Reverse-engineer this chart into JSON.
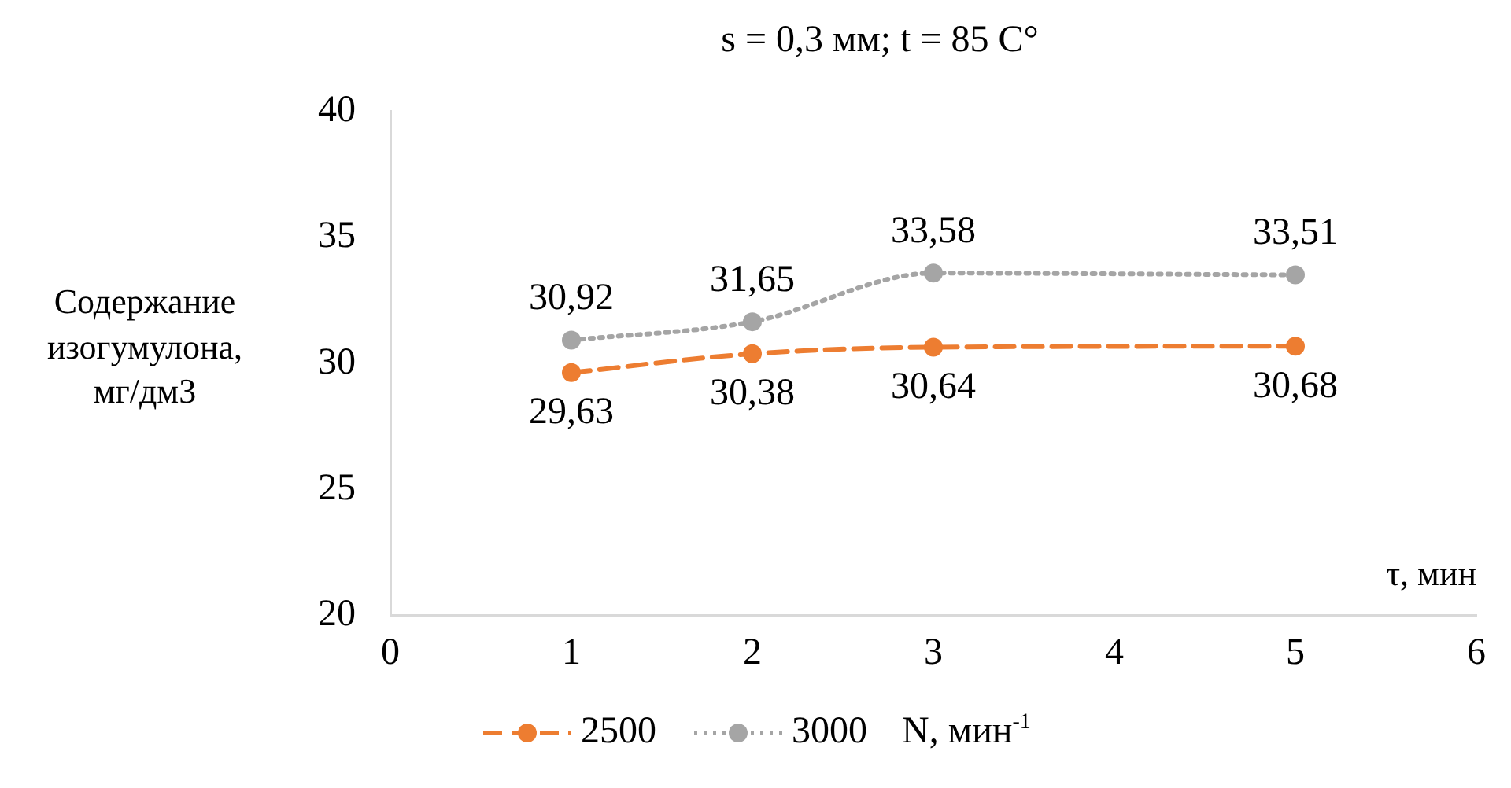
{
  "chart_data": {
    "type": "line",
    "title": "s = 0,3 мм; t = 85 С°",
    "xlabel": "τ, мин",
    "ylabel": "Содержание изогумулона, мг/дм3",
    "legend_title": "N, мин$^{-1}$",
    "x": [
      1,
      2,
      3,
      5
    ],
    "series": [
      {
        "name": "2500",
        "color": "#ed7d31",
        "values": [
          29.63,
          30.38,
          30.64,
          30.68
        ],
        "value_labels": [
          "29,63",
          "30,38",
          "30,64",
          "30,68"
        ],
        "line_style": "dashed"
      },
      {
        "name": "3000",
        "color": "#a5a5a5",
        "values": [
          30.92,
          31.65,
          33.58,
          33.51
        ],
        "value_labels": [
          "30,92",
          "31,65",
          "33,58",
          "33,51"
        ],
        "line_style": "dotted"
      }
    ],
    "xlim": [
      0,
      6
    ],
    "xticks": [
      0,
      1,
      2,
      3,
      4,
      5,
      6
    ],
    "ylim": [
      20,
      40
    ],
    "yticks": [
      20,
      25,
      30,
      35,
      40
    ],
    "grid": false,
    "legend": "bottom",
    "marker": "circle"
  }
}
